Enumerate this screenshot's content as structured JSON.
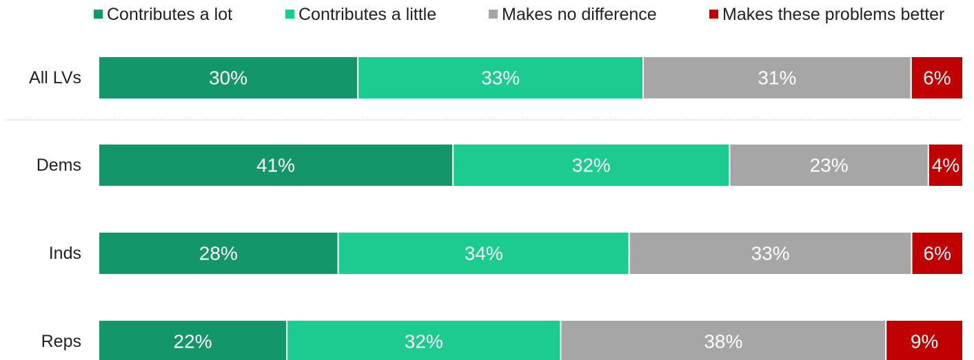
{
  "chart_data": {
    "type": "bar",
    "orientation": "horizontal",
    "stacked": true,
    "categories": [
      "All LVs",
      "Dems",
      "Inds",
      "Reps"
    ],
    "series": [
      {
        "name": "Contributes a lot",
        "values": [
          30,
          41,
          28,
          22
        ],
        "labels": [
          "30%",
          "41%",
          "28%",
          "22%"
        ],
        "color": "#139669"
      },
      {
        "name": "Contributes a little",
        "values": [
          33,
          32,
          34,
          32
        ],
        "labels": [
          "33%",
          "32%",
          "34%",
          "32%"
        ],
        "color": "#1bcb8f"
      },
      {
        "name": "Makes no difference",
        "values": [
          31,
          23,
          33,
          38
        ],
        "labels": [
          "31%",
          "23%",
          "33%",
          "38%"
        ],
        "color": "#a6a6a6"
      },
      {
        "name": "Makes these problems better",
        "values": [
          6,
          4,
          6,
          9
        ],
        "labels": [
          "6%",
          "4%",
          "6%",
          "9%"
        ],
        "color": "#c00000"
      }
    ],
    "xlim": [
      0,
      100
    ],
    "legend": "top",
    "grid": false,
    "separator_after_category": "All LVs"
  }
}
